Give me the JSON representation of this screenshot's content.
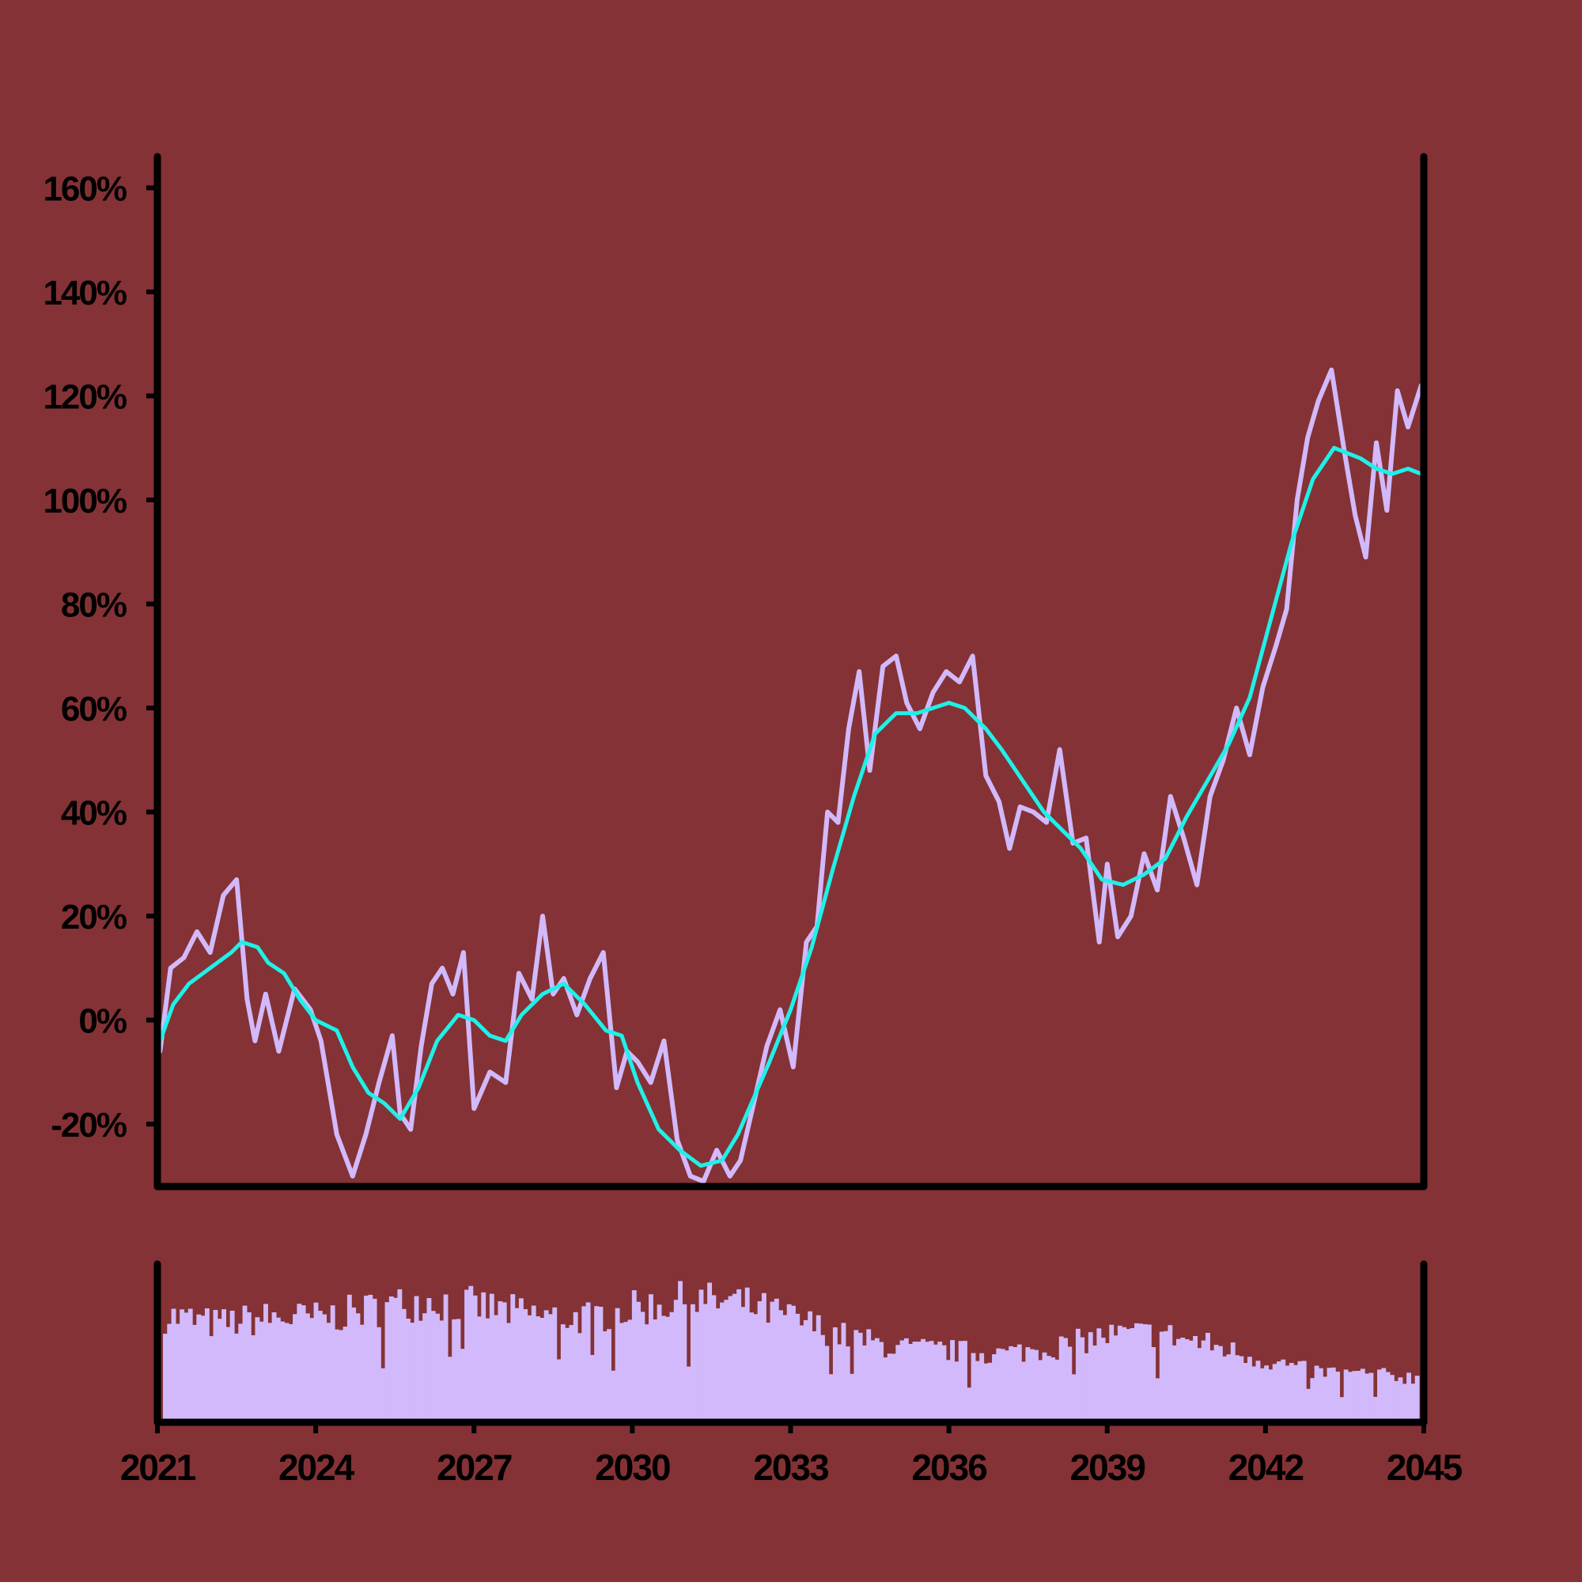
{
  "colors": {
    "background": "#843235",
    "frame": "#000000",
    "price_line": "#d2b9fb",
    "moving_average_line": "#1ff0e8",
    "volume_bars": "#d2b9fb",
    "text": "#000000"
  },
  "chart_data": [
    {
      "type": "line",
      "title": "",
      "xlabel": "",
      "ylabel": "",
      "xlim": [
        2021,
        2045
      ],
      "ylim": [
        -32,
        166
      ],
      "grid": false,
      "legend": "none",
      "y_ticks": [
        -20,
        0,
        20,
        40,
        60,
        80,
        100,
        120,
        140,
        160
      ],
      "y_tick_labels": [
        "-20%",
        "0%",
        "20%",
        "40%",
        "60%",
        "80%",
        "100%",
        "120%",
        "140%",
        "160%"
      ],
      "series": [
        {
          "role": "price",
          "color": "#d2b9fb",
          "x": [
            2021.05,
            2021.25,
            2021.5,
            2021.75,
            2022.0,
            2022.25,
            2022.5,
            2022.7,
            2022.85,
            2023.05,
            2023.3,
            2023.6,
            2023.9,
            2024.1,
            2024.4,
            2024.7,
            2024.95,
            2025.2,
            2025.45,
            2025.6,
            2025.8,
            2026.0,
            2026.2,
            2026.4,
            2026.6,
            2026.8,
            2027.0,
            2027.3,
            2027.6,
            2027.85,
            2028.1,
            2028.3,
            2028.5,
            2028.7,
            2028.95,
            2029.2,
            2029.45,
            2029.7,
            2029.9,
            2030.1,
            2030.35,
            2030.6,
            2030.85,
            2031.1,
            2031.35,
            2031.6,
            2031.85,
            2032.05,
            2032.3,
            2032.55,
            2032.8,
            2033.05,
            2033.3,
            2033.5,
            2033.7,
            2033.9,
            2034.1,
            2034.3,
            2034.5,
            2034.75,
            2035.0,
            2035.2,
            2035.45,
            2035.7,
            2035.95,
            2036.2,
            2036.45,
            2036.7,
            2036.95,
            2037.15,
            2037.35,
            2037.6,
            2037.85,
            2038.1,
            2038.35,
            2038.6,
            2038.85,
            2039.0,
            2039.2,
            2039.45,
            2039.7,
            2039.95,
            2040.2,
            2040.45,
            2040.7,
            2040.95,
            2041.2,
            2041.45,
            2041.7,
            2041.95,
            2042.2,
            2042.4,
            2042.6,
            2042.8,
            2043.0,
            2043.25,
            2043.5,
            2043.7,
            2043.9,
            2044.1,
            2044.3,
            2044.5,
            2044.7,
            2044.95
          ],
          "y": [
            -6,
            10,
            12,
            17,
            13,
            24,
            27,
            4,
            -4,
            5,
            -6,
            6,
            2,
            -4,
            -22,
            -30,
            -22,
            -12,
            -3,
            -18,
            -21,
            -5,
            7,
            10,
            5,
            13,
            -17,
            -10,
            -12,
            9,
            4,
            20,
            5,
            8,
            1,
            8,
            13,
            -13,
            -6,
            -8,
            -12,
            -4,
            -23,
            -30,
            -31,
            -25,
            -30,
            -27,
            -16,
            -5,
            2,
            -9,
            15,
            18,
            40,
            38,
            56,
            67,
            48,
            68,
            70,
            61,
            56,
            63,
            67,
            65,
            70,
            47,
            42,
            33,
            41,
            40,
            38,
            52,
            34,
            35,
            15,
            30,
            16,
            20,
            32,
            25,
            43,
            35,
            26,
            43,
            50,
            60,
            51,
            64,
            72,
            79,
            100,
            112,
            119,
            125,
            109,
            97,
            89,
            111,
            98,
            121,
            114,
            122
          ]
        },
        {
          "role": "moving-average",
          "color": "#1ff0e8",
          "x": [
            2021.05,
            2021.3,
            2021.6,
            2022.0,
            2022.4,
            2022.6,
            2022.9,
            2023.1,
            2023.4,
            2023.7,
            2024.0,
            2024.4,
            2024.7,
            2025.0,
            2025.3,
            2025.6,
            2025.95,
            2026.3,
            2026.7,
            2027.0,
            2027.3,
            2027.6,
            2027.9,
            2028.3,
            2028.7,
            2029.1,
            2029.5,
            2029.8,
            2030.1,
            2030.5,
            2030.9,
            2031.3,
            2031.7,
            2032.0,
            2032.3,
            2032.6,
            2033.0,
            2033.4,
            2033.8,
            2034.2,
            2034.6,
            2035.0,
            2035.4,
            2035.7,
            2036.0,
            2036.3,
            2036.7,
            2037.0,
            2037.4,
            2037.8,
            2038.1,
            2038.5,
            2038.9,
            2039.3,
            2039.7,
            2040.1,
            2040.5,
            2040.9,
            2041.3,
            2041.7,
            2042.1,
            2042.5,
            2042.9,
            2043.3,
            2043.55,
            2043.8,
            2044.1,
            2044.4,
            2044.7,
            2044.95
          ],
          "y": [
            -4,
            3,
            7,
            10,
            13,
            15,
            14,
            11,
            9,
            4,
            0,
            -2,
            -9,
            -14,
            -16,
            -19,
            -13,
            -4,
            1,
            0,
            -3,
            -4,
            1,
            5,
            7,
            3,
            -2,
            -3,
            -12,
            -21,
            -25,
            -28,
            -27,
            -22,
            -15,
            -8,
            2,
            14,
            29,
            43,
            55,
            59,
            59,
            60,
            61,
            60,
            56,
            52,
            46,
            40,
            37,
            33,
            27,
            26,
            28,
            31,
            39,
            46,
            53,
            62,
            77,
            92,
            104,
            110,
            109,
            108,
            106,
            105,
            106,
            105
          ]
        }
      ]
    },
    {
      "type": "bar",
      "title": "",
      "xlabel": "",
      "ylabel": "",
      "xlim": [
        2021,
        2045
      ],
      "ylim": [
        0,
        1
      ],
      "grid": false,
      "legend": "none",
      "x_ticks": [
        2021,
        2024,
        2027,
        2030,
        2033,
        2036,
        2039,
        2042,
        2045
      ],
      "x_tick_labels": [
        "2021",
        "2024",
        "2027",
        "2030",
        "2033",
        "2036",
        "2039",
        "2042",
        "2045"
      ],
      "series": [
        {
          "role": "volume",
          "color": "#d2b9fb",
          "profile_x": [
            2021,
            2022,
            2023,
            2024,
            2025,
            2026,
            2027,
            2028,
            2029,
            2030,
            2031,
            2032,
            2033,
            2034,
            2035,
            2036,
            2037,
            2038,
            2039,
            2040,
            2041,
            2042,
            2043,
            2044,
            2045
          ],
          "profile_values": [
            0.72,
            0.66,
            0.7,
            0.7,
            0.76,
            0.82,
            0.78,
            0.72,
            0.7,
            0.76,
            0.82,
            0.8,
            0.7,
            0.58,
            0.5,
            0.48,
            0.46,
            0.5,
            0.58,
            0.6,
            0.52,
            0.42,
            0.34,
            0.32,
            0.3
          ]
        }
      ]
    }
  ]
}
